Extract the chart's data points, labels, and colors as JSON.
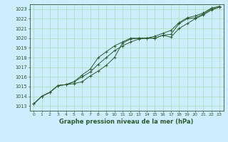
{
  "title": "Graphe pression niveau de la mer (hPa)",
  "background_color": "#cceeff",
  "grid_color": "#aaddaa",
  "line_color": "#2d5a2d",
  "marker_color": "#2d5a2d",
  "xlim": [
    -0.5,
    23.5
  ],
  "ylim": [
    1012.5,
    1023.5
  ],
  "yticks": [
    1013,
    1014,
    1015,
    1016,
    1017,
    1018,
    1019,
    1020,
    1021,
    1022,
    1023
  ],
  "xticks": [
    0,
    1,
    2,
    3,
    4,
    5,
    6,
    7,
    8,
    9,
    10,
    11,
    12,
    13,
    14,
    15,
    16,
    17,
    18,
    19,
    20,
    21,
    22,
    23
  ],
  "series": [
    [
      1013.2,
      1014.0,
      1014.4,
      1015.1,
      1015.2,
      1015.3,
      1015.5,
      1016.1,
      1016.6,
      1017.2,
      1018.0,
      1019.5,
      1019.9,
      1020.0,
      1020.0,
      1020.0,
      1020.3,
      1020.4,
      1021.5,
      1022.0,
      1022.1,
      1022.5,
      1023.0,
      1023.2
    ],
    [
      1013.2,
      1014.0,
      1014.4,
      1015.1,
      1015.2,
      1015.5,
      1016.0,
      1016.5,
      1017.3,
      1018.0,
      1018.7,
      1019.2,
      1019.6,
      1019.9,
      1020.0,
      1020.2,
      1020.5,
      1020.8,
      1021.6,
      1022.1,
      1022.3,
      1022.6,
      1023.1,
      1023.3
    ],
    [
      1013.2,
      1014.0,
      1014.4,
      1015.1,
      1015.2,
      1015.5,
      1016.2,
      1016.8,
      1018.0,
      1018.6,
      1019.2,
      1019.6,
      1020.0,
      1020.0,
      1020.0,
      1020.0,
      1020.3,
      1020.1,
      1021.0,
      1021.5,
      1022.0,
      1022.4,
      1022.9,
      1023.2
    ]
  ]
}
